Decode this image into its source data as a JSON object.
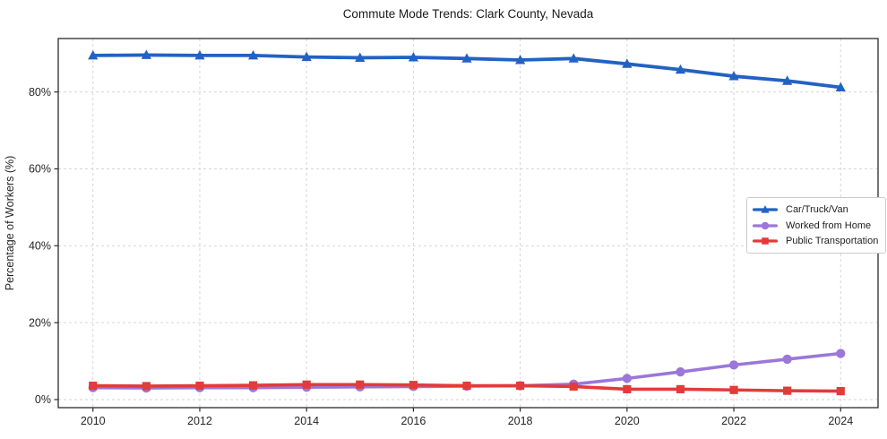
{
  "chart_data": {
    "type": "line",
    "title": "Commute Mode Trends: Clark County, Nevada",
    "ylabel": "Percentage of Workers (%)",
    "x": [
      2010,
      2011,
      2012,
      2013,
      2014,
      2015,
      2016,
      2017,
      2018,
      2019,
      2020,
      2021,
      2022,
      2023,
      2024
    ],
    "series": [
      {
        "name": "Car/Truck/Van",
        "color": "#2262c2",
        "marker": "triangle",
        "line_width": 3.8,
        "values": [
          89.5,
          89.6,
          89.5,
          89.5,
          89.1,
          88.9,
          89.0,
          88.7,
          88.3,
          88.7,
          87.3,
          85.8,
          84.1,
          82.9,
          81.2
        ]
      },
      {
        "name": "Worked from Home",
        "color": "#9b77d9",
        "marker": "circle",
        "line_width": 3.6,
        "values": [
          3.1,
          3.0,
          3.1,
          3.1,
          3.2,
          3.3,
          3.4,
          3.5,
          3.6,
          4.0,
          5.5,
          7.2,
          9.0,
          10.5,
          12.0
        ]
      },
      {
        "name": "Public Transportation",
        "color": "#e23b3b",
        "marker": "square",
        "line_width": 3.6,
        "values": [
          3.6,
          3.5,
          3.6,
          3.7,
          3.9,
          3.9,
          3.8,
          3.6,
          3.6,
          3.4,
          2.7,
          2.7,
          2.5,
          2.3,
          2.2
        ]
      }
    ],
    "xlim": [
      2009.35,
      2024.7
    ],
    "ylim": [
      -2.1,
      93.9
    ],
    "xticks": {
      "values": [
        2010,
        2012,
        2014,
        2016,
        2018,
        2020,
        2022,
        2024
      ],
      "labels": [
        "2010",
        "2012",
        "2014",
        "2016",
        "2018",
        "2020",
        "2022",
        "2024"
      ]
    },
    "yticks": {
      "values": [
        0,
        20,
        40,
        60,
        80
      ],
      "labels": [
        "0%",
        "20%",
        "40%",
        "60%",
        "80%"
      ]
    },
    "grid": true,
    "legend": {
      "position": "center-right"
    },
    "colors": {
      "grid": "#d6d6d6",
      "spine": "#2b2b2b",
      "text": "#262626",
      "background": "#ffffff"
    }
  }
}
